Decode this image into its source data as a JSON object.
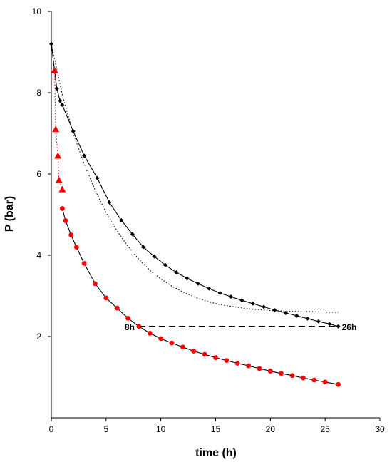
{
  "chart_data": {
    "type": "scatter",
    "title": "",
    "xlabel": "time (h)",
    "ylabel": "P (bar)",
    "xlim": [
      0,
      30
    ],
    "ylim": [
      0,
      10
    ],
    "xticks": [
      0,
      5,
      10,
      15,
      20,
      25,
      30
    ],
    "yticks": [
      2,
      4,
      6,
      8,
      10
    ],
    "grid": false,
    "series": [
      {
        "color": "#000000",
        "marker": "diamond",
        "line": "solid",
        "x": [
          0,
          0.5,
          0.8,
          1.0,
          2.0,
          3.0,
          4.2,
          5.3,
          6.4,
          7.4,
          8.4,
          9.4,
          10.4,
          11.4,
          12.4,
          13.4,
          14.4,
          15.4,
          16.4,
          17.4,
          18.4,
          19.4,
          20.4,
          21.4,
          22.4,
          23.4,
          24.4,
          25.4,
          26.2
        ],
        "y": [
          9.2,
          8.1,
          7.8,
          7.7,
          7.05,
          6.45,
          5.9,
          5.3,
          4.86,
          4.52,
          4.2,
          3.97,
          3.76,
          3.58,
          3.43,
          3.3,
          3.18,
          3.07,
          2.98,
          2.89,
          2.81,
          2.73,
          2.65,
          2.58,
          2.51,
          2.44,
          2.37,
          2.31,
          2.25
        ]
      },
      {
        "color": "#000000",
        "marker": "none",
        "line": "dotted",
        "x": [
          0,
          1,
          2,
          3,
          4,
          5,
          6,
          7,
          8,
          9,
          10,
          11,
          12,
          13,
          14,
          15,
          16,
          17,
          18,
          19,
          20,
          21,
          22,
          23,
          24,
          25,
          26.2
        ],
        "y": [
          9.2,
          7.95,
          7.0,
          6.25,
          5.6,
          5.05,
          4.6,
          4.22,
          3.9,
          3.63,
          3.42,
          3.24,
          3.1,
          2.98,
          2.88,
          2.81,
          2.76,
          2.72,
          2.68,
          2.66,
          2.64,
          2.63,
          2.62,
          2.61,
          2.61,
          2.6,
          2.6
        ]
      },
      {
        "color": "#ff0000",
        "marker": "triangle",
        "line": "dotted",
        "x": [
          0.3,
          0.4,
          0.6,
          0.7,
          1.0
        ],
        "y": [
          8.55,
          7.1,
          6.45,
          5.85,
          5.62
        ]
      },
      {
        "color": "#ff0000",
        "marker": "circle",
        "line": "solid",
        "x": [
          1.0,
          1.3,
          1.8,
          2.3,
          3.0,
          4.0,
          5.0,
          6.0,
          7.0,
          8.0,
          9.0,
          10.0,
          11.0,
          12.0,
          13.0,
          14.0,
          15.0,
          16.0,
          17.0,
          18.0,
          19.0,
          20.0,
          21.0,
          22.0,
          23.0,
          24.0,
          25.0,
          26.2
        ],
        "y": [
          5.15,
          4.85,
          4.5,
          4.2,
          3.8,
          3.3,
          2.95,
          2.7,
          2.45,
          2.25,
          2.08,
          1.95,
          1.84,
          1.74,
          1.64,
          1.56,
          1.48,
          1.41,
          1.34,
          1.28,
          1.21,
          1.15,
          1.09,
          1.04,
          0.98,
          0.93,
          0.88,
          0.82
        ]
      }
    ],
    "annotations": [
      {
        "text": "8h",
        "x": 8,
        "y": 2.25
      },
      {
        "text": "26h",
        "x": 26.2,
        "y": 2.25
      }
    ],
    "reference_line": {
      "style": "dashed",
      "x": [
        8,
        26.2
      ],
      "y": [
        2.25,
        2.25
      ]
    }
  }
}
